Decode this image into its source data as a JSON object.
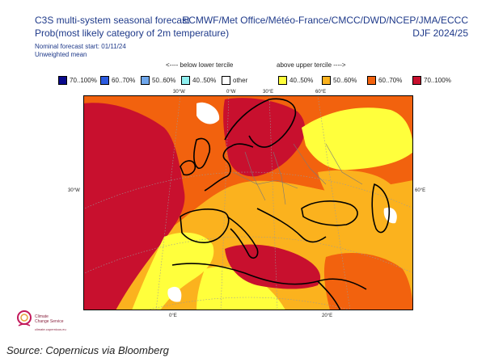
{
  "header": {
    "title_line1": "C3S multi-system seasonal forecast",
    "title_line2": "Prob(most likely category of 2m temperature)",
    "start": "Nominal forecast start: 01/11/24",
    "mean": "Unweighted mean",
    "centers": "ECMWF/Met Office/Météo-France/CMCC/DWD/NCEP/JMA/ECCC",
    "season": "DJF 2024/25"
  },
  "legend": {
    "below_label": "<---- below lower tercile",
    "above_label": "above upper tercile ---->",
    "items": [
      {
        "label": "70..100%",
        "color": "#0a0a8c"
      },
      {
        "label": "60..70%",
        "color": "#2c5be0"
      },
      {
        "label": "50..60%",
        "color": "#6fa7ec"
      },
      {
        "label": "40..50%",
        "color": "#8ff0f0"
      },
      {
        "label": "other",
        "color": "#ffffff"
      },
      {
        "label": "40..50%",
        "color": "#ffff3c"
      },
      {
        "label": "50..60%",
        "color": "#fbb21e"
      },
      {
        "label": "60..70%",
        "color": "#f2620e"
      },
      {
        "label": "70..100%",
        "color": "#c8102e"
      }
    ]
  },
  "map": {
    "lon_labels": [
      "30°W",
      "0°W",
      "30°E",
      "60°E",
      "30°W",
      "60°E",
      "0°E",
      "20°E"
    ]
  },
  "logo": {
    "name_line1": "Climate",
    "name_line2": "Change Service",
    "url": "climate.copernicus.eu"
  },
  "source": "Source: Copernicus via Bloomberg"
}
